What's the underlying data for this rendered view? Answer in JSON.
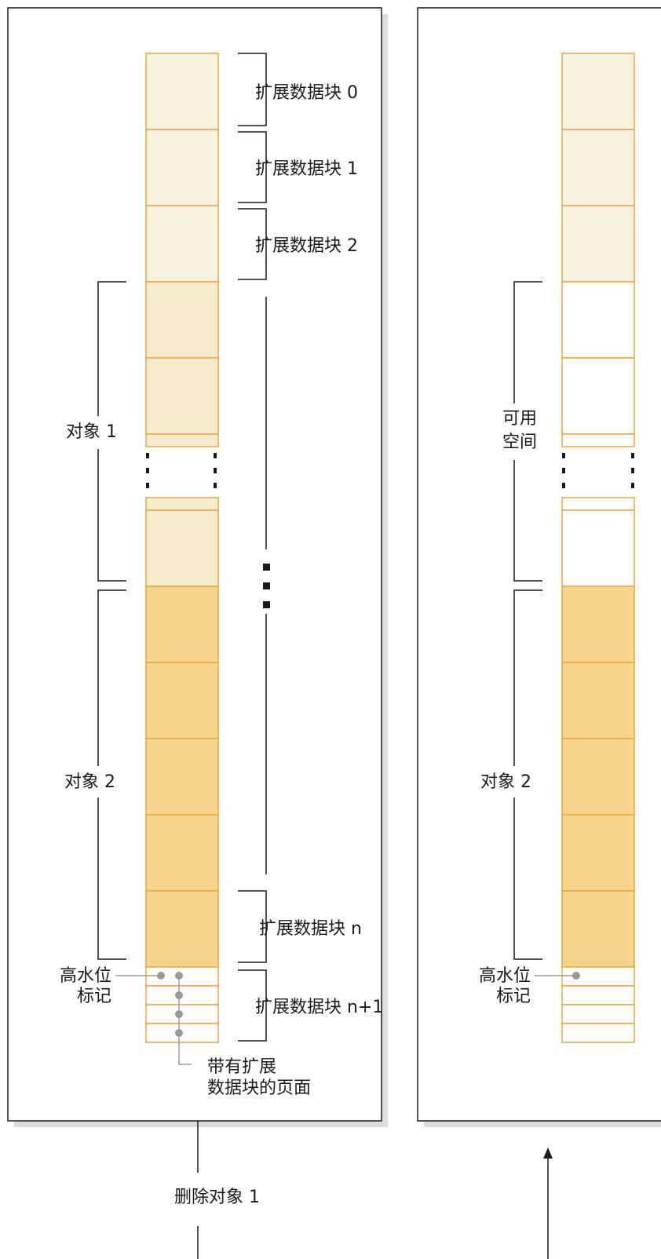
{
  "colors": {
    "cell_border": "#f2a53a",
    "extent_fill": "#f8f2e2",
    "object1_fill": "#f6ebcd",
    "object2_fill": "#f5d48b",
    "free_fill": "#ffffff",
    "line": "#1a1a1a",
    "marker": "#9a9a9a",
    "panel_shadow": "#dcdcdc"
  },
  "left_panel": {
    "extents": [
      {
        "label": "扩展数据块 0"
      },
      {
        "label": "扩展数据块 1"
      },
      {
        "label": "扩展数据块 2"
      },
      {
        "label": "扩展数据块 n"
      },
      {
        "label": "扩展数据块 n+1"
      }
    ],
    "object1_label": "对象 1",
    "object2_label": "对象 2",
    "hwm_label": [
      "高水位",
      "标记"
    ],
    "pages_label": [
      "带有扩展",
      "数据块的页面"
    ]
  },
  "right_panel": {
    "free_space_label": [
      "可用",
      "空间"
    ],
    "object2_label": "对象 2",
    "hwm_label": [
      "高水位",
      "标记"
    ]
  },
  "transition_label": "删除对象 1"
}
